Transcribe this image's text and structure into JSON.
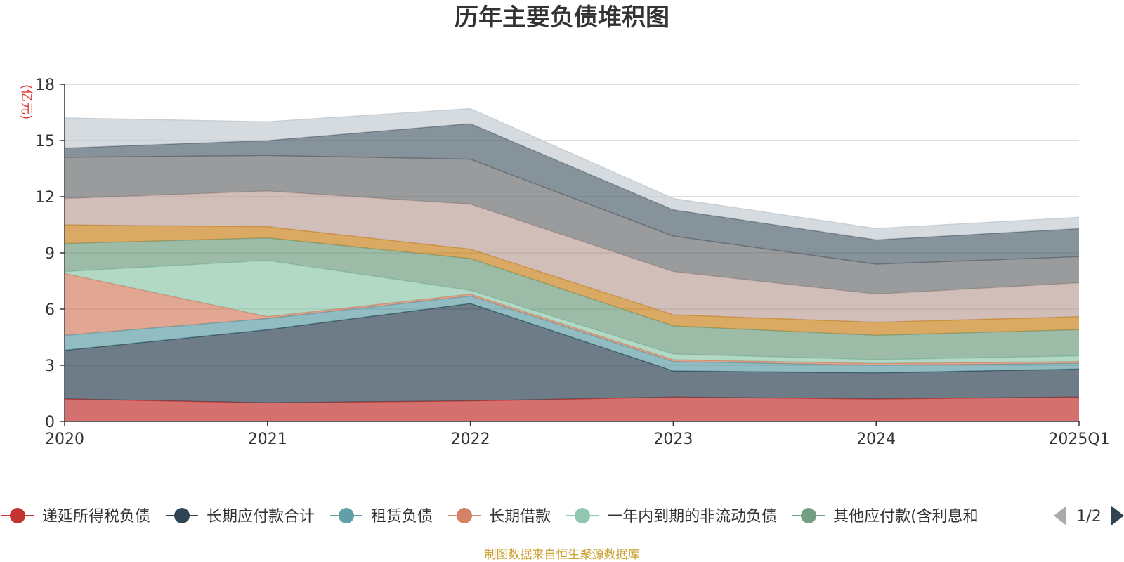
{
  "chart_data": {
    "type": "area",
    "stacked": true,
    "title": "历年主要负债堆积图",
    "unit_label": "(亿元)",
    "categories": [
      "2020",
      "2021",
      "2022",
      "2023",
      "2024",
      "2025Q1"
    ],
    "ylim": [
      0,
      18
    ],
    "yticks": [
      "0",
      "3",
      "6",
      "9",
      "12",
      "15",
      "18"
    ],
    "grid": true,
    "legend_position": "bottom",
    "legend_page": "1/2",
    "source": "制图数据来自恒生聚源数据库",
    "series": [
      {
        "name": "递延所得税负债",
        "color": "#c23531",
        "values": [
          1.2,
          1.0,
          1.1,
          1.3,
          1.2,
          1.3
        ]
      },
      {
        "name": "长期应付款合计",
        "color": "#2f4554",
        "values": [
          2.6,
          3.9,
          5.2,
          1.4,
          1.4,
          1.5
        ]
      },
      {
        "name": "租赁负债",
        "color": "#61a0a8",
        "values": [
          0.8,
          0.6,
          0.4,
          0.5,
          0.4,
          0.3
        ]
      },
      {
        "name": "长期借款",
        "color": "#d48265",
        "values": [
          3.3,
          0.1,
          0.1,
          0.1,
          0.1,
          0.1
        ]
      },
      {
        "name": "一年内到期的非流动负债",
        "color": "#91c7ae",
        "values": [
          0.1,
          3.0,
          0.2,
          0.3,
          0.2,
          0.3
        ]
      },
      {
        "name": "其他应付款(含利息和",
        "color": "#749f83",
        "values": [
          1.5,
          1.2,
          1.7,
          1.5,
          1.3,
          1.4
        ]
      },
      {
        "name": "",
        "color": "#ca8622",
        "values": [
          1.0,
          0.6,
          0.5,
          0.6,
          0.7,
          0.7
        ]
      },
      {
        "name": "",
        "color": "#bda29a",
        "values": [
          1.4,
          1.9,
          2.4,
          2.3,
          1.5,
          1.8
        ]
      },
      {
        "name": "",
        "color": "#6e7074",
        "values": [
          2.2,
          1.9,
          2.4,
          1.9,
          1.6,
          1.4
        ]
      },
      {
        "name": "",
        "color": "#546570",
        "values": [
          0.5,
          0.8,
          1.9,
          1.4,
          1.3,
          1.5
        ]
      },
      {
        "name": "",
        "color": "#c4ccd3",
        "values": [
          1.6,
          1.0,
          0.8,
          0.6,
          0.6,
          0.6
        ]
      }
    ]
  }
}
